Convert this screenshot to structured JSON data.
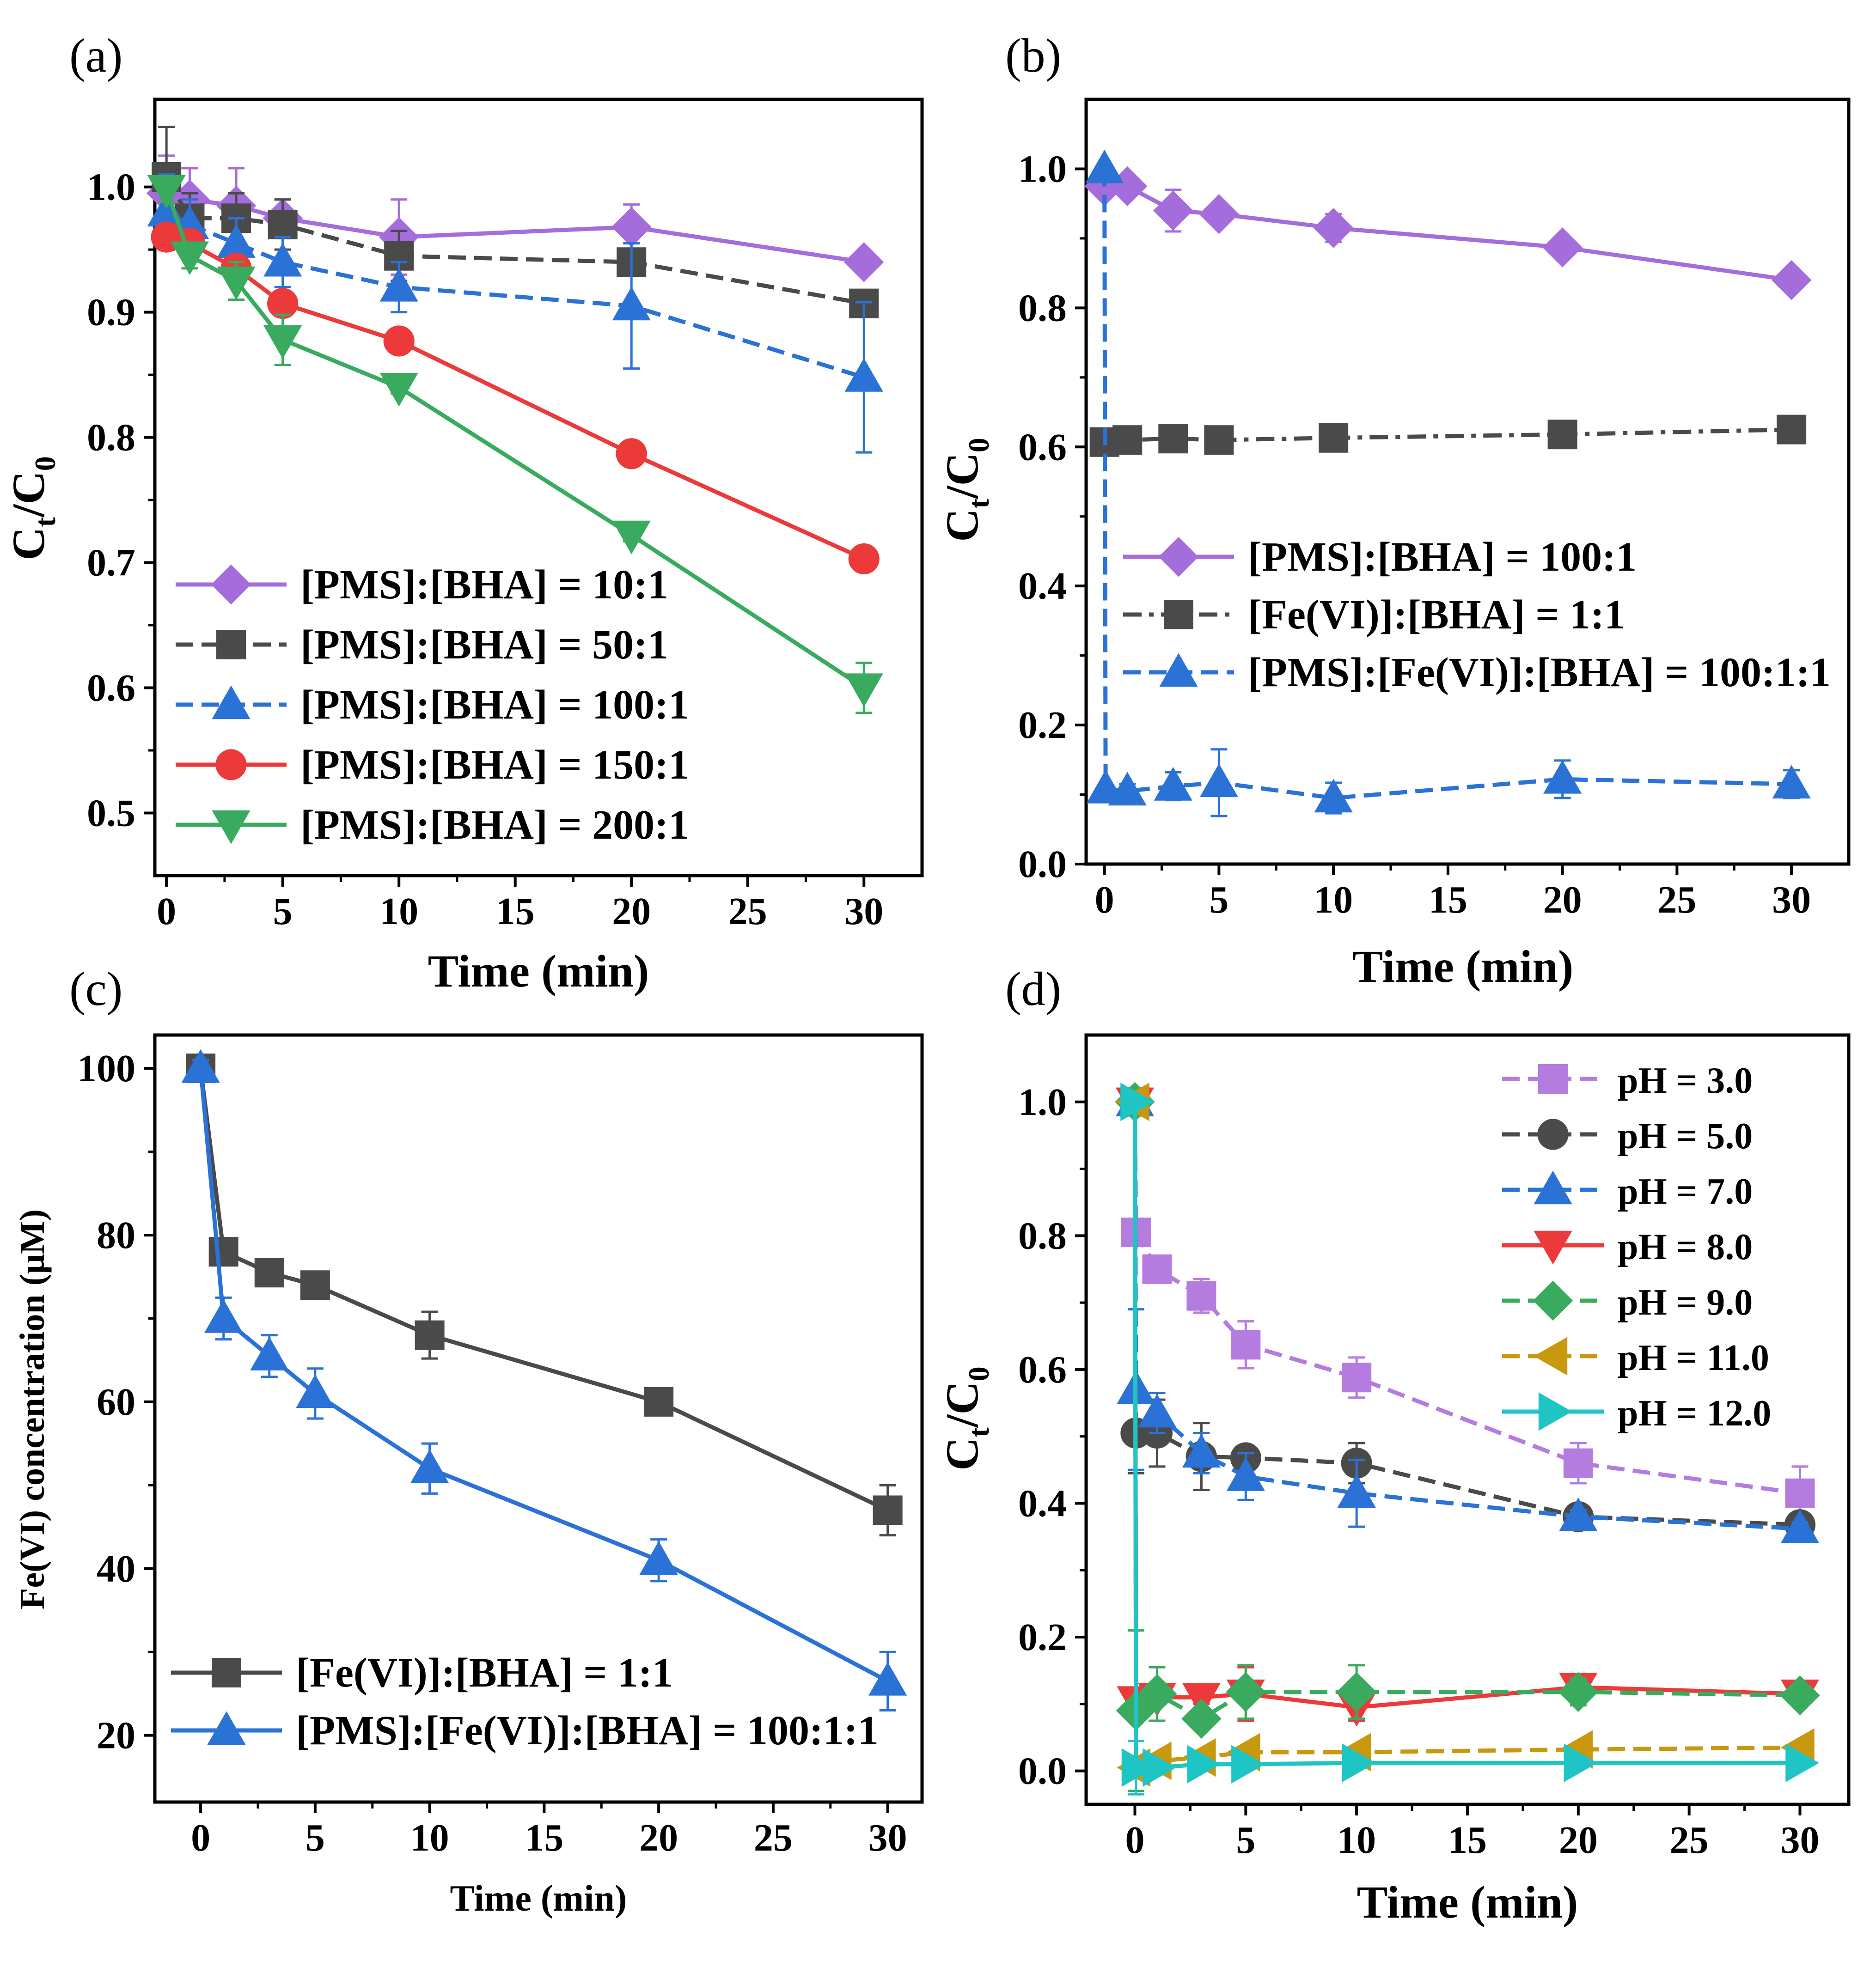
{
  "chart_data": [
    {
      "panel": "(a)",
      "type": "line",
      "xlabel": "Time (min)",
      "ylabel_main": "C",
      "ylabel_sub1": "t",
      "ylabel_mid": "/C",
      "ylabel_sub2": "0",
      "xlim": [
        -0.5,
        32.5
      ],
      "ylim": [
        0.45,
        1.07
      ],
      "xticks": [
        0,
        5,
        10,
        15,
        20,
        25,
        30
      ],
      "yticks": [
        0.5,
        0.6,
        0.7,
        0.8,
        0.9,
        1.0
      ],
      "ytick_decimals": 1,
      "legend_position": "bottom-left",
      "x": [
        0,
        1,
        3,
        5,
        10,
        20,
        30
      ],
      "series": [
        {
          "name": "[PMS]:[BHA] = 10:1",
          "marker": "diamond",
          "color": "#a56ddb",
          "dash": "solid",
          "values": [
            0.995,
            0.99,
            0.985,
            0.975,
            0.96,
            0.968,
            0.94
          ],
          "errors": [
            0.03,
            0.025,
            0.03,
            0.015,
            0.03,
            0.018,
            0.005
          ]
        },
        {
          "name": "[PMS]:[BHA] = 50:1",
          "marker": "square",
          "color": "#4a4a4a",
          "dash": "dash",
          "values": [
            1.008,
            0.975,
            0.975,
            0.97,
            0.945,
            0.94,
            0.907
          ],
          "errors": [
            0.04,
            0.02,
            0.02,
            0.02,
            0.02,
            0.01,
            0.005
          ]
        },
        {
          "name": "[PMS]:[BHA] = 100:1",
          "marker": "triangle-up",
          "color": "#2a72d6",
          "dash": "dash",
          "values": [
            0.98,
            0.97,
            0.955,
            0.94,
            0.92,
            0.905,
            0.848
          ],
          "errors": [
            0.03,
            0.02,
            0.02,
            0.02,
            0.02,
            0.05,
            0.06
          ]
        },
        {
          "name": "[PMS]:[BHA] = 150:1",
          "marker": "circle",
          "color": "#ec3a3a",
          "dash": "solid",
          "values": [
            0.96,
            0.955,
            0.935,
            0.907,
            0.877,
            0.787,
            0.703
          ],
          "errors": [
            0.01,
            0.01,
            0.01,
            0.01,
            0.005,
            0.005,
            0.005
          ]
        },
        {
          "name": "[PMS]:[BHA] = 200:1",
          "marker": "triangle-down",
          "color": "#3aaa5f",
          "dash": "solid",
          "values": [
            0.998,
            0.945,
            0.925,
            0.878,
            0.84,
            0.722,
            0.6
          ],
          "errors": [
            0.01,
            0.01,
            0.015,
            0.02,
            0.005,
            0.005,
            0.02
          ]
        }
      ]
    },
    {
      "panel": "(b)",
      "type": "line",
      "xlabel": "Time (min)",
      "ylabel_main": "C",
      "ylabel_sub1": "t",
      "ylabel_mid": "/C",
      "ylabel_sub2": "0",
      "xlim": [
        -0.8,
        32.5
      ],
      "ylim": [
        0,
        1.1
      ],
      "xticks": [
        0,
        5,
        10,
        15,
        20,
        25,
        30
      ],
      "yticks": [
        0.0,
        0.2,
        0.4,
        0.6,
        0.8,
        1.0
      ],
      "ytick_decimals": 1,
      "legend_position": "center",
      "series": [
        {
          "name": "[PMS]:[BHA] = 100:1",
          "marker": "diamond",
          "color": "#a56ddb",
          "dash": "solid",
          "x": [
            0,
            1,
            3,
            5,
            10,
            20,
            30
          ],
          "values": [
            0.975,
            0.975,
            0.94,
            0.935,
            0.915,
            0.887,
            0.84
          ],
          "errors": [
            0.01,
            0.01,
            0.03,
            0.01,
            0.02,
            0.01,
            0.01
          ]
        },
        {
          "name": "[Fe(VI)]:[BHA] = 1:1",
          "marker": "square",
          "color": "#4a4a4a",
          "dash": "dashdot",
          "x": [
            0,
            1,
            3,
            5,
            10,
            20,
            30
          ],
          "values": [
            0.607,
            0.61,
            0.612,
            0.61,
            0.613,
            0.618,
            0.625
          ],
          "errors": [
            0.01,
            0.005,
            0.005,
            0.005,
            0.005,
            0.005,
            0.005
          ]
        },
        {
          "name": "[PMS]:[Fe(VI)]:[BHA] = 100:1:1",
          "marker": "triangle-up",
          "color": "#2a72d6",
          "dash": "dash",
          "x": [
            0,
            0.05,
            1,
            3,
            5,
            10,
            20,
            30
          ],
          "values": [
            1.0,
            0.108,
            0.105,
            0.112,
            0.117,
            0.095,
            0.122,
            0.115
          ],
          "errors": [
            0.0,
            0.0,
            0.01,
            0.02,
            0.048,
            0.022,
            0.027,
            0.02
          ]
        }
      ]
    },
    {
      "panel": "(c)",
      "type": "line",
      "xlabel": "Time (min)",
      "ylabel": "Fe(VI) concentration (μM)",
      "xlim": [
        -2,
        31.5
      ],
      "ylim": [
        12,
        104
      ],
      "xticks": [
        0,
        5,
        10,
        15,
        20,
        25,
        30
      ],
      "yticks": [
        20,
        40,
        60,
        80,
        100
      ],
      "ytick_decimals": 0,
      "legend_position": "bottom-left",
      "x": [
        0,
        1,
        3,
        5,
        10,
        20,
        30
      ],
      "series": [
        {
          "name": "[Fe(VI)]:[BHA] = 1:1",
          "marker": "square",
          "color": "#4a4a4a",
          "dash": "solid",
          "values": [
            100,
            78,
            75.5,
            74,
            68,
            60,
            47
          ],
          "errors": [
            1,
            1.5,
            1.5,
            1.5,
            2.8,
            1.5,
            3
          ]
        },
        {
          "name": "[PMS]:[Fe(VI)]:[BHA] = 100:1:1",
          "marker": "triangle-up",
          "color": "#2a72d6",
          "dash": "solid",
          "values": [
            100,
            70,
            65.5,
            61,
            52,
            41,
            26.5
          ],
          "errors": [
            1,
            2.5,
            2.5,
            3,
            3,
            2.5,
            3.5
          ]
        }
      ]
    },
    {
      "panel": "(d)",
      "type": "line",
      "xlabel": "Time (min)",
      "ylabel_main": "C",
      "ylabel_sub1": "t",
      "ylabel_mid": "/C",
      "ylabel_sub2": "0",
      "xlim": [
        -2.2,
        32.2
      ],
      "ylim": [
        -0.05,
        1.1
      ],
      "xticks": [
        0,
        5,
        10,
        15,
        20,
        25,
        30
      ],
      "yticks": [
        0.0,
        0.2,
        0.4,
        0.6,
        0.8,
        1.0
      ],
      "ytick_decimals": 1,
      "legend_position": "top-right",
      "series": [
        {
          "name": "pH = 3.0",
          "marker": "square",
          "color": "#b57ce0",
          "dash": "dash",
          "x": [
            0,
            0.05,
            1,
            3,
            5,
            10,
            20,
            30
          ],
          "values": [
            1.0,
            0.805,
            0.75,
            0.71,
            0.637,
            0.588,
            0.46,
            0.415
          ],
          "errors": [
            0,
            0.01,
            0.01,
            0.025,
            0.035,
            0.03,
            0.03,
            0.04
          ]
        },
        {
          "name": "pH = 5.0",
          "marker": "circle",
          "color": "#4a4a4a",
          "dash": "dash",
          "x": [
            0,
            0.05,
            1,
            3,
            5,
            10,
            20,
            30
          ],
          "values": [
            1.0,
            0.505,
            0.505,
            0.47,
            0.468,
            0.46,
            0.38,
            0.368
          ],
          "errors": [
            0,
            0.06,
            0.05,
            0.05,
            0.01,
            0.03,
            0.01,
            0.01
          ]
        },
        {
          "name": "pH = 7.0",
          "marker": "triangle-up",
          "color": "#2a72d6",
          "dash": "dash",
          "x": [
            0,
            0.05,
            1,
            3,
            5,
            10,
            20,
            30
          ],
          "values": [
            1.0,
            0.57,
            0.535,
            0.475,
            0.44,
            0.415,
            0.38,
            0.362
          ],
          "errors": [
            0,
            0.12,
            0.03,
            0.03,
            0.035,
            0.05,
            0.01,
            0.01
          ]
        },
        {
          "name": "pH = 8.0",
          "marker": "triangle-down",
          "color": "#ec3a3a",
          "dash": "solid",
          "x": [
            0,
            0.05,
            1,
            3,
            5,
            10,
            20,
            30
          ],
          "values": [
            1.0,
            0.105,
            0.11,
            0.11,
            0.115,
            0.095,
            0.125,
            0.115
          ],
          "errors": [
            0,
            0.01,
            0.01,
            0.01,
            0.04,
            0.02,
            0.02,
            0.01
          ]
        },
        {
          "name": "pH = 9.0",
          "marker": "diamond",
          "color": "#3aaa5f",
          "dash": "dash",
          "x": [
            0,
            0.05,
            1,
            3,
            5,
            10,
            20,
            30
          ],
          "values": [
            1.0,
            0.09,
            0.115,
            0.078,
            0.118,
            0.118,
            0.118,
            0.113
          ],
          "errors": [
            0,
            0.12,
            0.04,
            0.01,
            0.04,
            0.04,
            0.02,
            0.01
          ]
        },
        {
          "name": "pH = 11.0",
          "marker": "triangle-left",
          "color": "#c8980e",
          "dash": "dash",
          "x": [
            0,
            0.05,
            1,
            3,
            5,
            10,
            20,
            30
          ],
          "values": [
            1.0,
            0.005,
            0.015,
            0.02,
            0.028,
            0.028,
            0.032,
            0.035
          ],
          "errors": [
            0,
            0.01,
            0.005,
            0.005,
            0.005,
            0.005,
            0.005,
            0.005
          ]
        },
        {
          "name": "pH = 12.0",
          "marker": "triangle-right",
          "color": "#1fc4c4",
          "dash": "solid",
          "x": [
            0,
            0.05,
            1,
            3,
            5,
            10,
            20,
            30
          ],
          "values": [
            1.0,
            0.005,
            0.005,
            0.01,
            0.01,
            0.012,
            0.012,
            0.012
          ],
          "errors": [
            0,
            0.04,
            0.005,
            0.005,
            0.005,
            0.005,
            0.005,
            0.005
          ]
        }
      ]
    }
  ]
}
